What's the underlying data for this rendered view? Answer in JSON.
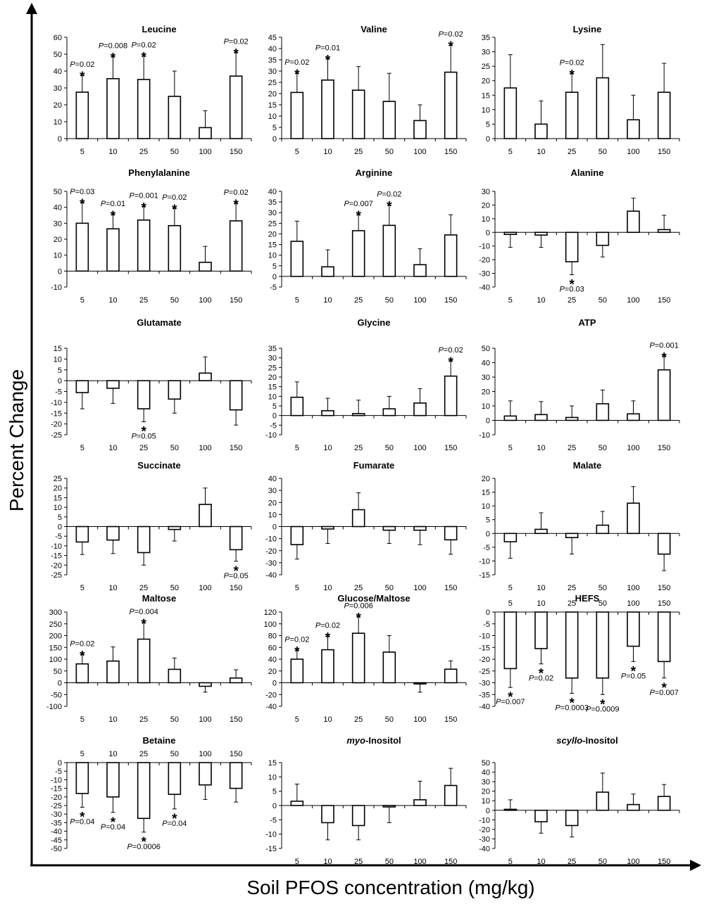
{
  "xlabel": "Soil PFOS concentration (mg/kg)",
  "ylabel": "Percent Change",
  "chart_data": [
    {
      "type": "bar",
      "title": "Leucine",
      "categories": [
        "5",
        "10",
        "25",
        "50",
        "100",
        "150"
      ],
      "values": [
        27.5,
        35.5,
        35,
        25,
        6.5,
        37
      ],
      "errors": [
        10,
        13,
        14,
        15,
        10,
        14
      ],
      "ylim": [
        0,
        60
      ],
      "yticks": [
        0,
        10,
        20,
        30,
        40,
        50,
        60
      ],
      "annotations": [
        {
          "index": 0,
          "pi": "P",
          "pv": "=0.02"
        },
        {
          "index": 1,
          "pi": "P",
          "pv": "=0.008"
        },
        {
          "index": 2,
          "pi": "P",
          "pv": "=0.02"
        },
        {
          "index": 5,
          "pi": "P",
          "pv": "=0.02"
        }
      ]
    },
    {
      "type": "bar",
      "title": "Valine",
      "categories": [
        "5",
        "10",
        "25",
        "50",
        "100",
        "150"
      ],
      "values": [
        20.5,
        26,
        21.5,
        16.5,
        8,
        29.5
      ],
      "errors": [
        8.5,
        9.5,
        10.5,
        12.5,
        7,
        12
      ],
      "ylim": [
        0,
        45
      ],
      "yticks": [
        0,
        5,
        10,
        15,
        20,
        25,
        30,
        35,
        40,
        45
      ],
      "annotations": [
        {
          "index": 0,
          "pi": "P",
          "pv": "=0.02"
        },
        {
          "index": 1,
          "pi": "P",
          "pv": "=0.01"
        },
        {
          "index": 5,
          "pi": "P",
          "pv": "=0.02"
        }
      ]
    },
    {
      "type": "bar",
      "title": "Lysine",
      "categories": [
        "5",
        "10",
        "25",
        "50",
        "100",
        "150"
      ],
      "values": [
        17.5,
        5,
        16,
        21,
        6.5,
        16
      ],
      "errors": [
        11.5,
        8,
        6.5,
        11.5,
        8.5,
        10
      ],
      "ylim": [
        0,
        35
      ],
      "yticks": [
        0,
        5,
        10,
        15,
        20,
        25,
        30,
        35
      ],
      "annotations": [
        {
          "index": 2,
          "pi": "P",
          "pv": "=0.02"
        }
      ]
    },
    {
      "type": "bar",
      "title": "Phenylalanine",
      "categories": [
        "5",
        "10",
        "25",
        "50",
        "100",
        "150"
      ],
      "values": [
        30,
        26.5,
        32,
        28.5,
        5.5,
        31.5
      ],
      "errors": [
        13,
        9,
        8.5,
        11,
        10,
        11
      ],
      "ylim": [
        -10,
        50
      ],
      "yticks": [
        -10,
        0,
        10,
        20,
        30,
        40,
        50
      ],
      "annotations": [
        {
          "index": 0,
          "pi": "P",
          "pv": "=0.03"
        },
        {
          "index": 1,
          "pi": "P",
          "pv": "=0.01"
        },
        {
          "index": 2,
          "pi": "P",
          "pv": "=0.001"
        },
        {
          "index": 3,
          "pi": "P",
          "pv": "=0.02"
        },
        {
          "index": 5,
          "pi": "P",
          "pv": "=0.02"
        }
      ]
    },
    {
      "type": "bar",
      "title": "Arginine",
      "categories": [
        "5",
        "10",
        "25",
        "50",
        "100",
        "150"
      ],
      "values": [
        16.5,
        4.5,
        21.5,
        24,
        5.5,
        19.5
      ],
      "errors": [
        9.5,
        8,
        7.5,
        9.5,
        7.5,
        9.5
      ],
      "ylim": [
        -5,
        40
      ],
      "yticks": [
        -5,
        0,
        5,
        10,
        15,
        20,
        25,
        30,
        35,
        40
      ],
      "annotations": [
        {
          "index": 2,
          "pi": "P",
          "pv": "=0.007"
        },
        {
          "index": 3,
          "pi": "P",
          "pv": "=0.02"
        }
      ]
    },
    {
      "type": "bar",
      "title": "Alanine",
      "categories": [
        "5",
        "10",
        "25",
        "50",
        "100",
        "150"
      ],
      "values": [
        -1.5,
        -2,
        -21.5,
        -9.5,
        15.5,
        2
      ],
      "errors": [
        9.5,
        9,
        9.5,
        8.5,
        9.5,
        10.5
      ],
      "ylim": [
        -40,
        30
      ],
      "yticks": [
        -40,
        -30,
        -20,
        -10,
        0,
        10,
        20,
        30
      ],
      "annotations": [
        {
          "index": 2,
          "pi": "P",
          "pv": "=0.03"
        }
      ]
    },
    {
      "type": "bar",
      "title": "Glutamate",
      "categories": [
        "5",
        "10",
        "25",
        "50",
        "100",
        "150"
      ],
      "values": [
        -5.5,
        -3.5,
        -13,
        -8.5,
        3.5,
        -13.5
      ],
      "errors": [
        7.5,
        7,
        6,
        6.5,
        7.5,
        7
      ],
      "ylim": [
        -25,
        15
      ],
      "yticks": [
        -25,
        -20,
        -15,
        -10,
        -5,
        0,
        5,
        10,
        15
      ],
      "annotations": [
        {
          "index": 2,
          "pi": "P",
          "pv": "=0.05"
        }
      ]
    },
    {
      "type": "bar",
      "title": "Glycine",
      "categories": [
        "5",
        "10",
        "25",
        "50",
        "100",
        "150"
      ],
      "values": [
        9.5,
        2.5,
        1,
        3.5,
        6.5,
        20.5
      ],
      "errors": [
        8,
        6.5,
        7,
        6.5,
        7.5,
        8
      ],
      "ylim": [
        -10,
        35
      ],
      "yticks": [
        -10,
        -5,
        0,
        5,
        10,
        15,
        20,
        25,
        30,
        35
      ],
      "annotations": [
        {
          "index": 5,
          "pi": "P",
          "pv": "=0.02"
        }
      ]
    },
    {
      "type": "bar",
      "title": "ATP",
      "categories": [
        "5",
        "10",
        "25",
        "50",
        "100",
        "150"
      ],
      "values": [
        3,
        4,
        2,
        11.5,
        4.5,
        35
      ],
      "errors": [
        10.5,
        9,
        8,
        9.5,
        9,
        9.5
      ],
      "ylim": [
        -10,
        50
      ],
      "yticks": [
        -10,
        0,
        10,
        20,
        30,
        40,
        50
      ],
      "annotations": [
        {
          "index": 5,
          "pi": "P",
          "pv": "=0.001"
        }
      ]
    },
    {
      "type": "bar",
      "title": "Succinate",
      "categories": [
        "5",
        "10",
        "25",
        "50",
        "100",
        "150"
      ],
      "values": [
        -8,
        -7,
        -13.5,
        -1.5,
        11.5,
        -12
      ],
      "errors": [
        6.5,
        7,
        6.5,
        6,
        8.5,
        6
      ],
      "ylim": [
        -25,
        25
      ],
      "yticks": [
        -25,
        -20,
        -15,
        -10,
        -5,
        0,
        5,
        10,
        15,
        20,
        25
      ],
      "annotations": [
        {
          "index": 5,
          "pi": "P",
          "pv": "=0.05"
        }
      ]
    },
    {
      "type": "bar",
      "title": "Fumarate",
      "categories": [
        "5",
        "10",
        "25",
        "50",
        "100",
        "150"
      ],
      "values": [
        -15,
        -2,
        14,
        -3,
        -3,
        -11
      ],
      "errors": [
        12,
        12,
        14,
        11,
        12,
        12
      ],
      "ylim": [
        -40,
        40
      ],
      "yticks": [
        -40,
        -30,
        -20,
        -10,
        0,
        10,
        20,
        30,
        40
      ],
      "annotations": []
    },
    {
      "type": "bar",
      "title": "Malate",
      "categories": [
        "5",
        "10",
        "25",
        "50",
        "100",
        "150"
      ],
      "values": [
        -3,
        1.5,
        -1.5,
        3,
        11,
        -7.5
      ],
      "errors": [
        6,
        6,
        6,
        5,
        6,
        6
      ],
      "ylim": [
        -15,
        20
      ],
      "yticks": [
        -15,
        -10,
        -5,
        0,
        5,
        10,
        15,
        20
      ],
      "annotations": []
    },
    {
      "type": "bar",
      "title": "Maltose",
      "categories": [
        "5",
        "10",
        "25",
        "50",
        "100",
        "150"
      ],
      "values": [
        80,
        92,
        185,
        57,
        -15,
        20
      ],
      "errors": [
        40,
        60,
        70,
        48,
        25,
        35
      ],
      "ylim": [
        -100,
        300
      ],
      "yticks": [
        -100,
        -50,
        0,
        50,
        100,
        150,
        200,
        250,
        300
      ],
      "annotations": [
        {
          "index": 0,
          "pi": "P",
          "pv": "=0.02"
        },
        {
          "index": 2,
          "pi": "P",
          "pv": "=0.004"
        }
      ]
    },
    {
      "type": "bar",
      "title": "Glucose/Maltose",
      "categories": [
        "5",
        "10",
        "25",
        "50",
        "100",
        "150"
      ],
      "values": [
        40,
        56,
        84,
        52,
        -2,
        23
      ],
      "errors": [
        15,
        23,
        28,
        28,
        14,
        14
      ],
      "ylim": [
        -40,
        120
      ],
      "yticks": [
        -40,
        -20,
        0,
        20,
        40,
        60,
        80,
        100,
        120
      ],
      "annotations": [
        {
          "index": 0,
          "pi": "P",
          "pv": "=0.02"
        },
        {
          "index": 1,
          "pi": "P",
          "pv": "=0.02"
        },
        {
          "index": 2,
          "pi": "P",
          "pv": "=0.006"
        }
      ]
    },
    {
      "type": "bar",
      "title": "HEFS",
      "categories": [
        "5",
        "10",
        "25",
        "50",
        "100",
        "150"
      ],
      "values": [
        -24,
        -15.5,
        -28,
        -28,
        -14.5,
        -21
      ],
      "errors": [
        8,
        6.5,
        6.5,
        7,
        6.5,
        7
      ],
      "ylim": [
        -40,
        0
      ],
      "yticks": [
        -40,
        -35,
        -30,
        -25,
        -20,
        -15,
        -10,
        -5,
        0
      ],
      "topcats": true,
      "annotations": [
        {
          "index": 0,
          "pi": "P",
          "pv": "=0.007"
        },
        {
          "index": 1,
          "pi": "P",
          "pv": "=0.02"
        },
        {
          "index": 2,
          "pi": "P",
          "pv": "=0.0003"
        },
        {
          "index": 3,
          "pi": "P",
          "pv": "=0.0009"
        },
        {
          "index": 4,
          "pi": "P",
          "pv": "=0.05"
        },
        {
          "index": 5,
          "pi": "P",
          "pv": "=0.007"
        }
      ]
    },
    {
      "type": "bar",
      "title": "Betaine",
      "categories": [
        "5",
        "10",
        "25",
        "50",
        "100",
        "150"
      ],
      "values": [
        -18,
        -20,
        -32.5,
        -18.5,
        -13,
        -15
      ],
      "errors": [
        8,
        9,
        8,
        8.5,
        8.5,
        8
      ],
      "ylim": [
        -50,
        0
      ],
      "yticks": [
        -50,
        -45,
        -40,
        -35,
        -30,
        -25,
        -20,
        -15,
        -10,
        -5,
        0
      ],
      "topcats": true,
      "annotations": [
        {
          "index": 0,
          "pi": "P",
          "pv": "=0.04"
        },
        {
          "index": 1,
          "pi": "P",
          "pv": "=0.04"
        },
        {
          "index": 2,
          "pi": "P",
          "pv": "=0.0006"
        },
        {
          "index": 3,
          "pi": "P",
          "pv": "=0.04"
        }
      ]
    },
    {
      "type": "bar",
      "title": "myo-Inositol",
      "title_italic": "myo",
      "title_rest": "-Inositol",
      "categories": [
        "5",
        "10",
        "25",
        "50",
        "100",
        "150"
      ],
      "values": [
        1.5,
        -6,
        -7,
        -0.5,
        2,
        7
      ],
      "errors": [
        6,
        6,
        5,
        5.5,
        6.5,
        6
      ],
      "ylim": [
        -15,
        15
      ],
      "yticks": [
        -15,
        -10,
        -5,
        0,
        5,
        10,
        15
      ],
      "annotations": []
    },
    {
      "type": "bar",
      "title": "scyllo-Inositol",
      "title_italic": "scyllo",
      "title_rest": "-Inositol",
      "categories": [
        "5",
        "10",
        "25",
        "50",
        "100",
        "150"
      ],
      "values": [
        1,
        -12,
        -16,
        19,
        6,
        14.5
      ],
      "errors": [
        10,
        12,
        12,
        20,
        11,
        12.5
      ],
      "ylim": [
        -40,
        50
      ],
      "yticks": [
        -40,
        -30,
        -20,
        -10,
        0,
        10,
        20,
        30,
        40,
        50
      ],
      "annotations": []
    }
  ]
}
